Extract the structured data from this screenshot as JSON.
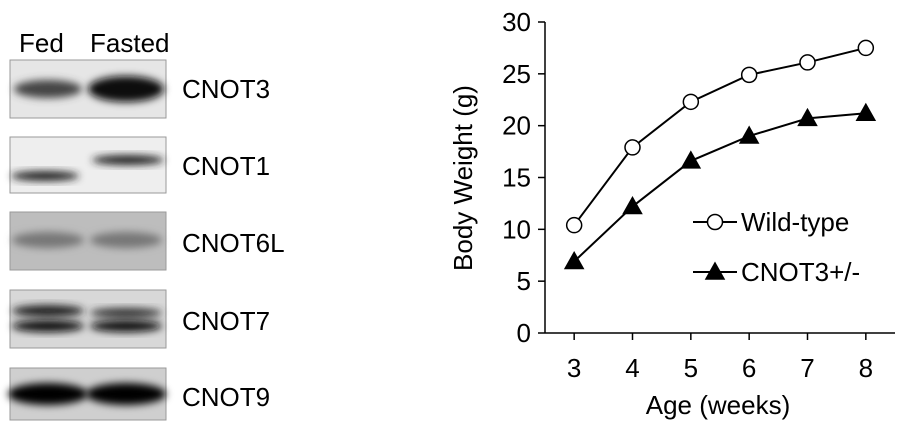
{
  "blot": {
    "columns": [
      "Fed",
      "Fasted"
    ],
    "proteins": [
      "CNOT3",
      "CNOT1",
      "CNOT6L",
      "CNOT7",
      "CNOT9"
    ]
  },
  "chart_data": {
    "type": "line",
    "x_label": "Age (weeks)",
    "y_label": "Body Weight (g)",
    "x": [
      3,
      4,
      5,
      6,
      7,
      8
    ],
    "series": [
      {
        "name": "Wild-type",
        "color": "#000000",
        "marker": "circle",
        "marker_fill": "#ffffff",
        "values": [
          10.4,
          17.9,
          22.3,
          24.9,
          26.1,
          27.5
        ]
      },
      {
        "name": "CNOT3+/-",
        "color": "#000000",
        "marker": "triangle",
        "marker_fill": "#000000",
        "values": [
          6.9,
          12.2,
          16.6,
          19.0,
          20.7,
          21.2
        ]
      }
    ],
    "xlim": [
      2.5,
      8.5
    ],
    "xticks": [
      3,
      4,
      5,
      6,
      7,
      8
    ],
    "ylim": [
      0,
      30
    ],
    "yticks": [
      0,
      5,
      10,
      15,
      20,
      25,
      30
    ],
    "grid": false
  }
}
